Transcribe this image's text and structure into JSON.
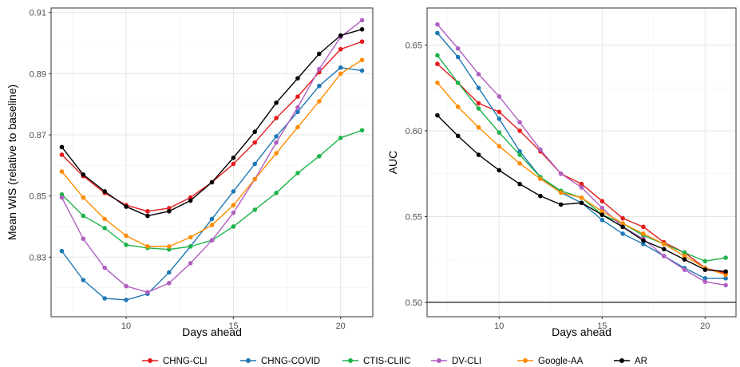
{
  "legend": [
    {
      "name": "CHNG-CLI",
      "color": "#e41a1c"
    },
    {
      "name": "CHNG-COVID",
      "color": "#1f78b4"
    },
    {
      "name": "CTIS-CLIIC",
      "color": "#1db34a"
    },
    {
      "name": "DV-CLI",
      "color": "#b05fc0"
    },
    {
      "name": "Google-AA",
      "color": "#ff8c00"
    },
    {
      "name": "AR",
      "color": "#000000"
    }
  ],
  "chart_data": [
    {
      "type": "line",
      "xlabel": "Days ahead",
      "ylabel": "Mean WIS (relative to baseline)",
      "xlim": [
        6.5,
        21.5
      ],
      "ylim": [
        0.8105,
        0.9115
      ],
      "xticks": [
        10,
        15,
        20
      ],
      "yticks": [
        0.83,
        0.85,
        0.87,
        0.89,
        0.91
      ],
      "ytick_labels": [
        "0.83",
        "0.85",
        "0.87",
        "0.89",
        "0.91"
      ],
      "grid": true,
      "x": [
        7,
        8,
        9,
        10,
        11,
        12,
        13,
        14,
        15,
        16,
        17,
        18,
        19,
        20,
        21
      ],
      "series": [
        {
          "name": "CHNG-CLI",
          "values": [
            0.8635,
            0.8565,
            0.851,
            0.847,
            0.845,
            0.846,
            0.8495,
            0.8545,
            0.8605,
            0.8675,
            0.8755,
            0.8825,
            0.8905,
            0.898,
            0.9005
          ]
        },
        {
          "name": "CHNG-COVID",
          "values": [
            0.832,
            0.8225,
            0.8165,
            0.816,
            0.818,
            0.825,
            0.8335,
            0.8425,
            0.8515,
            0.8605,
            0.8695,
            0.8775,
            0.886,
            0.892,
            0.891
          ]
        },
        {
          "name": "CTIS-CLIIC",
          "values": [
            0.8505,
            0.8435,
            0.8395,
            0.834,
            0.833,
            0.8325,
            0.8335,
            0.8355,
            0.84,
            0.8455,
            0.851,
            0.8575,
            0.863,
            0.869,
            0.8715
          ]
        },
        {
          "name": "DV-CLI",
          "values": [
            0.8495,
            0.836,
            0.8265,
            0.8205,
            0.8185,
            0.8215,
            0.828,
            0.8355,
            0.8445,
            0.8555,
            0.8675,
            0.879,
            0.8915,
            0.902,
            0.9075
          ]
        },
        {
          "name": "Google-AA",
          "values": [
            0.858,
            0.8495,
            0.8425,
            0.837,
            0.8335,
            0.8335,
            0.8365,
            0.8405,
            0.847,
            0.8555,
            0.864,
            0.8725,
            0.881,
            0.89,
            0.8945
          ]
        },
        {
          "name": "AR",
          "values": [
            0.866,
            0.857,
            0.8515,
            0.8465,
            0.8435,
            0.845,
            0.8485,
            0.8545,
            0.8625,
            0.871,
            0.8805,
            0.8885,
            0.8965,
            0.9025,
            0.9045
          ]
        }
      ]
    },
    {
      "type": "line",
      "xlabel": "Days ahead",
      "ylabel": "AUC",
      "xlim": [
        6.5,
        21.5
      ],
      "ylim": [
        0.4916,
        0.6716
      ],
      "xticks": [
        10,
        15,
        20
      ],
      "yticks": [
        0.5,
        0.55,
        0.6,
        0.65
      ],
      "ytick_labels": [
        "0.50",
        "0.55",
        "0.60",
        "0.65"
      ],
      "grid": true,
      "hline": 0.5,
      "x": [
        7,
        8,
        9,
        10,
        11,
        12,
        13,
        14,
        15,
        16,
        17,
        18,
        19,
        20,
        21
      ],
      "series": [
        {
          "name": "CHNG-CLI",
          "values": [
            0.639,
            0.628,
            0.616,
            0.611,
            0.6,
            0.588,
            0.575,
            0.569,
            0.559,
            0.549,
            0.544,
            0.535,
            0.529,
            0.52,
            0.517
          ]
        },
        {
          "name": "CHNG-COVID",
          "values": [
            0.657,
            0.643,
            0.625,
            0.607,
            0.588,
            0.573,
            0.564,
            0.558,
            0.548,
            0.54,
            0.534,
            0.527,
            0.52,
            0.514,
            0.514
          ]
        },
        {
          "name": "CTIS-CLIIC",
          "values": [
            0.644,
            0.628,
            0.613,
            0.599,
            0.586,
            0.573,
            0.565,
            0.561,
            0.551,
            0.546,
            0.539,
            0.534,
            0.529,
            0.524,
            0.526
          ]
        },
        {
          "name": "DV-CLI",
          "values": [
            0.662,
            0.648,
            0.633,
            0.62,
            0.605,
            0.589,
            0.575,
            0.567,
            0.555,
            0.544,
            0.537,
            0.527,
            0.519,
            0.512,
            0.51
          ]
        },
        {
          "name": "Google-AA",
          "values": [
            0.628,
            0.614,
            0.602,
            0.591,
            0.581,
            0.572,
            0.564,
            0.561,
            0.553,
            0.546,
            0.54,
            0.534,
            0.527,
            0.52,
            0.516
          ]
        },
        {
          "name": "AR",
          "values": [
            0.609,
            0.597,
            0.586,
            0.577,
            0.569,
            0.562,
            0.557,
            0.558,
            0.551,
            0.544,
            0.536,
            0.531,
            0.525,
            0.519,
            0.518
          ]
        }
      ]
    }
  ]
}
